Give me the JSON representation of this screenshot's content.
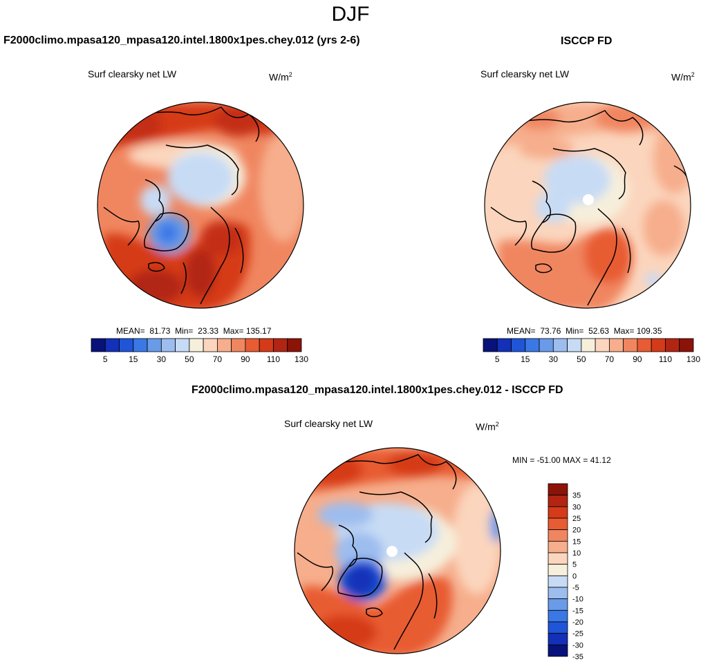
{
  "season": "DJF",
  "top_left": {
    "header": "F2000climo.mpasa120_mpasa120.intel.1800x1pes.chey.012 (yrs 2-6)",
    "variable": "Surf clearsky net LW",
    "units_base": "W/m",
    "units_sup": "2",
    "stats": {
      "mean_label": "MEAN=",
      "mean": "81.73",
      "min_label": "Min=",
      "min": "23.33",
      "max_label": "Max=",
      "max": "135.17"
    }
  },
  "top_right": {
    "header": "ISCCP FD",
    "variable": "Surf clearsky net LW",
    "units_base": "W/m",
    "units_sup": "2",
    "stats": {
      "mean_label": "MEAN=",
      "mean": "73.76",
      "min_label": "Min=",
      "min": "52.63",
      "max_label": "Max=",
      "max": "109.35"
    }
  },
  "bottom": {
    "header": "F2000climo.mpasa120_mpasa120.intel.1800x1pes.chey.012 - ISCCP FD",
    "variable": "Surf clearsky net LW",
    "units_base": "W/m",
    "units_sup": "2",
    "minmax": "MIN = -51.00 MAX =  41.12"
  },
  "abs_colorbar": {
    "colors": [
      "#08127a",
      "#1330b8",
      "#1f55d8",
      "#3a78e6",
      "#6a9be8",
      "#9dbdef",
      "#c7dbf5",
      "#f6efdc",
      "#fbd5bd",
      "#f6ae8c",
      "#f08660",
      "#e85c33",
      "#d53a19",
      "#b22513",
      "#8b1308"
    ],
    "labels": [
      "5",
      "15",
      "30",
      "50",
      "70",
      "90",
      "110",
      "130"
    ]
  },
  "diff_colorbar": {
    "colors": [
      "#08127a",
      "#1330b8",
      "#1f55d8",
      "#3a78e6",
      "#6a9be8",
      "#9dbdef",
      "#c7dbf5",
      "#f6efdc",
      "#fbd5bd",
      "#f6ae8c",
      "#f08660",
      "#e85c33",
      "#d53a19",
      "#b22513",
      "#8b1308"
    ],
    "labels": [
      "35",
      "30",
      "25",
      "20",
      "15",
      "10",
      "5",
      "0",
      "-5",
      "-10",
      "-15",
      "-20",
      "-25",
      "-30",
      "-35"
    ]
  }
}
